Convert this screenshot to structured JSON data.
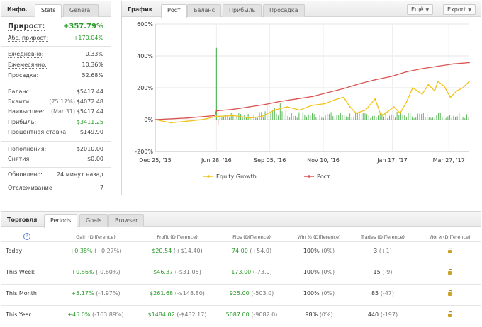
{
  "info": {
    "title": "Инфо.",
    "tabs": [
      "Stats",
      "General"
    ],
    "growth": {
      "label": "Прирост:",
      "value": "+357.79%"
    },
    "abs_growth": {
      "label": "Абс. прирост:",
      "value": "+170.04%"
    },
    "daily": {
      "label": "Ежедневно:",
      "value": "0.33%"
    },
    "monthly": {
      "label": "Ежемесячно:",
      "value": "10.36%"
    },
    "drawdown": {
      "label": "Просадка:",
      "value": "52.68%"
    },
    "balance": {
      "label": "Баланс:",
      "value": "$5417.44"
    },
    "equity": {
      "label": "Эквити:",
      "note": "(75.17%)",
      "value": "$4072.48"
    },
    "highest": {
      "label": "Наивысшее:",
      "note": "(Mar 31)",
      "value": "$5417.44"
    },
    "profit": {
      "label": "Прибыль:",
      "value": "$3411.25"
    },
    "interest": {
      "label": "Процентная ставка:",
      "value": "$149.90"
    },
    "deposits": {
      "label": "Пополнения:",
      "value": "$2010.00"
    },
    "withdrawals": {
      "label": "Снятия:",
      "value": "$0.00"
    },
    "updated": {
      "label": "Обновлено:",
      "value": "24 минут назад"
    },
    "tracking": {
      "label": "Отслеживание",
      "value": "7"
    }
  },
  "chart_panel": {
    "title": "График",
    "tabs": [
      "Рост",
      "Баланс",
      "Прибыль",
      "Просадка"
    ],
    "more_label": "Ещё",
    "export_label": "Export"
  },
  "chart_data": {
    "type": "line",
    "title": "",
    "y_ticks": [
      "600%",
      "400%",
      "200%",
      "0%",
      "-200%"
    ],
    "ylim": [
      -200,
      600
    ],
    "x_ticks": [
      "Dec 25, '15",
      "Jun 28, '16",
      "Sep 05, '16",
      "Nov 10, '16",
      "Jan 17, '17",
      "Mar 27, '17"
    ],
    "x_tick_fractions": [
      0.0,
      0.195,
      0.365,
      0.535,
      0.755,
      0.935
    ],
    "grid": true,
    "legend_position": "bottom",
    "series": [
      {
        "name": "Equity Growth",
        "color": "#f0c419",
        "x": [
          0,
          0.05,
          0.1,
          0.15,
          0.195,
          0.25,
          0.3,
          0.34,
          0.38,
          0.42,
          0.46,
          0.5,
          0.54,
          0.58,
          0.6,
          0.62,
          0.64,
          0.67,
          0.7,
          0.72,
          0.74,
          0.76,
          0.78,
          0.8,
          0.82,
          0.85,
          0.87,
          0.89,
          0.9,
          0.92,
          0.94,
          0.96,
          0.98,
          1.0
        ],
        "values": [
          0,
          -20,
          -10,
          0,
          20,
          25,
          10,
          20,
          60,
          80,
          60,
          90,
          100,
          130,
          140,
          80,
          40,
          60,
          130,
          20,
          50,
          80,
          40,
          110,
          200,
          160,
          220,
          180,
          240,
          210,
          140,
          180,
          200,
          240
        ]
      },
      {
        "name": "Рост",
        "color": "#d9534f",
        "x": [
          0,
          0.1,
          0.19,
          0.195,
          0.25,
          0.3,
          0.35,
          0.4,
          0.45,
          0.5,
          0.55,
          0.6,
          0.65,
          0.7,
          0.75,
          0.8,
          0.85,
          0.9,
          0.95,
          1.0
        ],
        "values": [
          0,
          10,
          25,
          55,
          65,
          80,
          95,
          115,
          130,
          145,
          170,
          195,
          225,
          250,
          270,
          300,
          320,
          335,
          350,
          358
        ]
      }
    ],
    "bars_color": "#5cb85c",
    "spikes": [
      {
        "x": 0.195,
        "value": 450
      },
      {
        "x": 0.2,
        "value": -30
      }
    ]
  },
  "trading": {
    "title": "Торговля",
    "tabs": [
      "Periods",
      "Goals",
      "Browser"
    ],
    "headers": [
      "Gain (Difference)",
      "Profit (Difference)",
      "Pips (Difference)",
      "Win % (Difference)",
      "Trades (Difference)",
      "Логи (Difference)"
    ],
    "rows": [
      {
        "period": "Today",
        "gain": "+0.38%",
        "gain_diff": "(+0.27%)",
        "profit": "$20.54",
        "profit_diff": "(+$14.40)",
        "pips": "74.00",
        "pips_diff": "(+54.0)",
        "win": "100%",
        "win_diff": "(0%)",
        "trades": "3",
        "trades_diff": "(+1)"
      },
      {
        "period": "This Week",
        "gain": "+0.86%",
        "gain_diff": "(-0.60%)",
        "profit": "$46.37",
        "profit_diff": "(-$31.05)",
        "pips": "173.00",
        "pips_diff": "(-73.0)",
        "win": "100%",
        "win_diff": "(0%)",
        "trades": "15",
        "trades_diff": "(-9)"
      },
      {
        "period": "This Month",
        "gain": "+5.17%",
        "gain_diff": "(-4.97%)",
        "profit": "$261.68",
        "profit_diff": "(-$148.80)",
        "pips": "925.00",
        "pips_diff": "(-503.0)",
        "win": "100%",
        "win_diff": "(0%)",
        "trades": "85",
        "trades_diff": "(-47)"
      },
      {
        "period": "This Year",
        "gain": "+45.0%",
        "gain_diff": "(-163.89%)",
        "profit": "$1484.02",
        "profit_diff": "(-$432.17)",
        "pips": "5087.00",
        "pips_diff": "(-9082.0)",
        "win": "98%",
        "win_diff": "(0%)",
        "trades": "440",
        "trades_diff": "(-197)"
      }
    ]
  }
}
